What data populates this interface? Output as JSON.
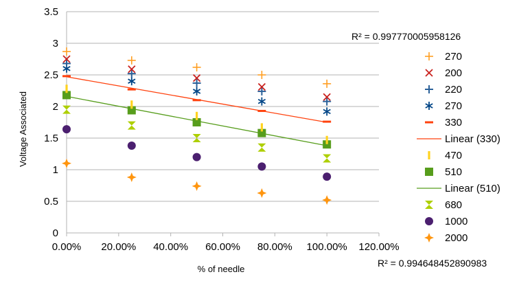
{
  "chart_data": {
    "type": "scatter",
    "xlabel": "% of needle",
    "ylabel": "Voltage Associated",
    "xlim": [
      0,
      1.2
    ],
    "ylim": [
      0,
      3.5
    ],
    "x_ticks": [
      0,
      0.2,
      0.4,
      0.6,
      0.8,
      1.0,
      1.2
    ],
    "x_tick_labels": [
      "0.00%",
      "20.00%",
      "40.00%",
      "60.00%",
      "80.00%",
      "100.00%",
      "120.00%"
    ],
    "y_ticks": [
      0,
      0.5,
      1,
      1.5,
      2,
      2.5,
      3,
      3.5
    ],
    "y_tick_labels": [
      "0",
      "0.5",
      "1",
      "1.5",
      "2",
      "2.5",
      "3",
      "3.5"
    ],
    "grid": "horizontal",
    "legend_position": "right",
    "x": [
      0,
      0.25,
      0.5,
      0.75,
      1.0
    ],
    "series": [
      {
        "name": "270",
        "marker": "plus-thin",
        "color": "#ff9e22",
        "values": [
          2.87,
          2.73,
          2.62,
          2.5,
          2.36
        ]
      },
      {
        "name": "200",
        "marker": "x",
        "color": "#c9211e",
        "values": [
          2.75,
          2.59,
          2.45,
          2.31,
          2.15
        ]
      },
      {
        "name": "220",
        "marker": "plus",
        "color": "#2a6099",
        "values": [
          2.68,
          2.52,
          2.37,
          2.24,
          2.08
        ]
      },
      {
        "name": "270",
        "marker": "asterisk",
        "color": "#004586",
        "values": [
          2.6,
          2.4,
          2.24,
          2.08,
          1.92
        ]
      },
      {
        "name": "330",
        "marker": "dash",
        "color": "#ff420e",
        "values": [
          2.48,
          2.27,
          2.1,
          1.93,
          1.76
        ]
      },
      {
        "name": "470",
        "marker": "bar",
        "color": "#ffd320",
        "values": [
          2.28,
          2.03,
          1.85,
          1.67,
          1.47
        ]
      },
      {
        "name": "510",
        "marker": "square",
        "color": "#579d1c",
        "values": [
          2.18,
          1.94,
          1.75,
          1.58,
          1.4
        ]
      },
      {
        "name": "680",
        "marker": "hourglass",
        "color": "#aecf00",
        "values": [
          1.95,
          1.7,
          1.5,
          1.35,
          1.18
        ]
      },
      {
        "name": "1000",
        "marker": "circle",
        "color": "#4b1f6f",
        "values": [
          1.64,
          1.38,
          1.2,
          1.05,
          0.89
        ]
      },
      {
        "name": "2000",
        "marker": "star4",
        "color": "#ff950e",
        "values": [
          1.1,
          0.88,
          0.74,
          0.63,
          0.52
        ]
      }
    ],
    "trendlines": [
      {
        "name": "Linear (330)",
        "color": "#ff420e",
        "from": [
          0,
          2.47
        ],
        "to": [
          1.0,
          1.75
        ]
      },
      {
        "name": "Linear (510)",
        "color": "#579d1c",
        "from": [
          0,
          2.16
        ],
        "to": [
          1.0,
          1.38
        ]
      }
    ],
    "legend": [
      {
        "label": "270",
        "kind": "marker",
        "ref": 0
      },
      {
        "label": "200",
        "kind": "marker",
        "ref": 1
      },
      {
        "label": "220",
        "kind": "marker",
        "ref": 2
      },
      {
        "label": "270",
        "kind": "marker",
        "ref": 3
      },
      {
        "label": "330",
        "kind": "marker",
        "ref": 4
      },
      {
        "label": "Linear (330)",
        "kind": "line",
        "ref": 0
      },
      {
        "label": "470",
        "kind": "marker",
        "ref": 5
      },
      {
        "label": "510",
        "kind": "marker",
        "ref": 6
      },
      {
        "label": "Linear (510)",
        "kind": "line",
        "ref": 1
      },
      {
        "label": "680",
        "kind": "marker",
        "ref": 7
      },
      {
        "label": "1000",
        "kind": "marker",
        "ref": 8
      },
      {
        "label": "2000",
        "kind": "marker",
        "ref": 9
      }
    ],
    "annotations": {
      "r2_top": "R² = 0.997770005958126",
      "r2_bottom": "R² = 0.994648452890983"
    }
  }
}
